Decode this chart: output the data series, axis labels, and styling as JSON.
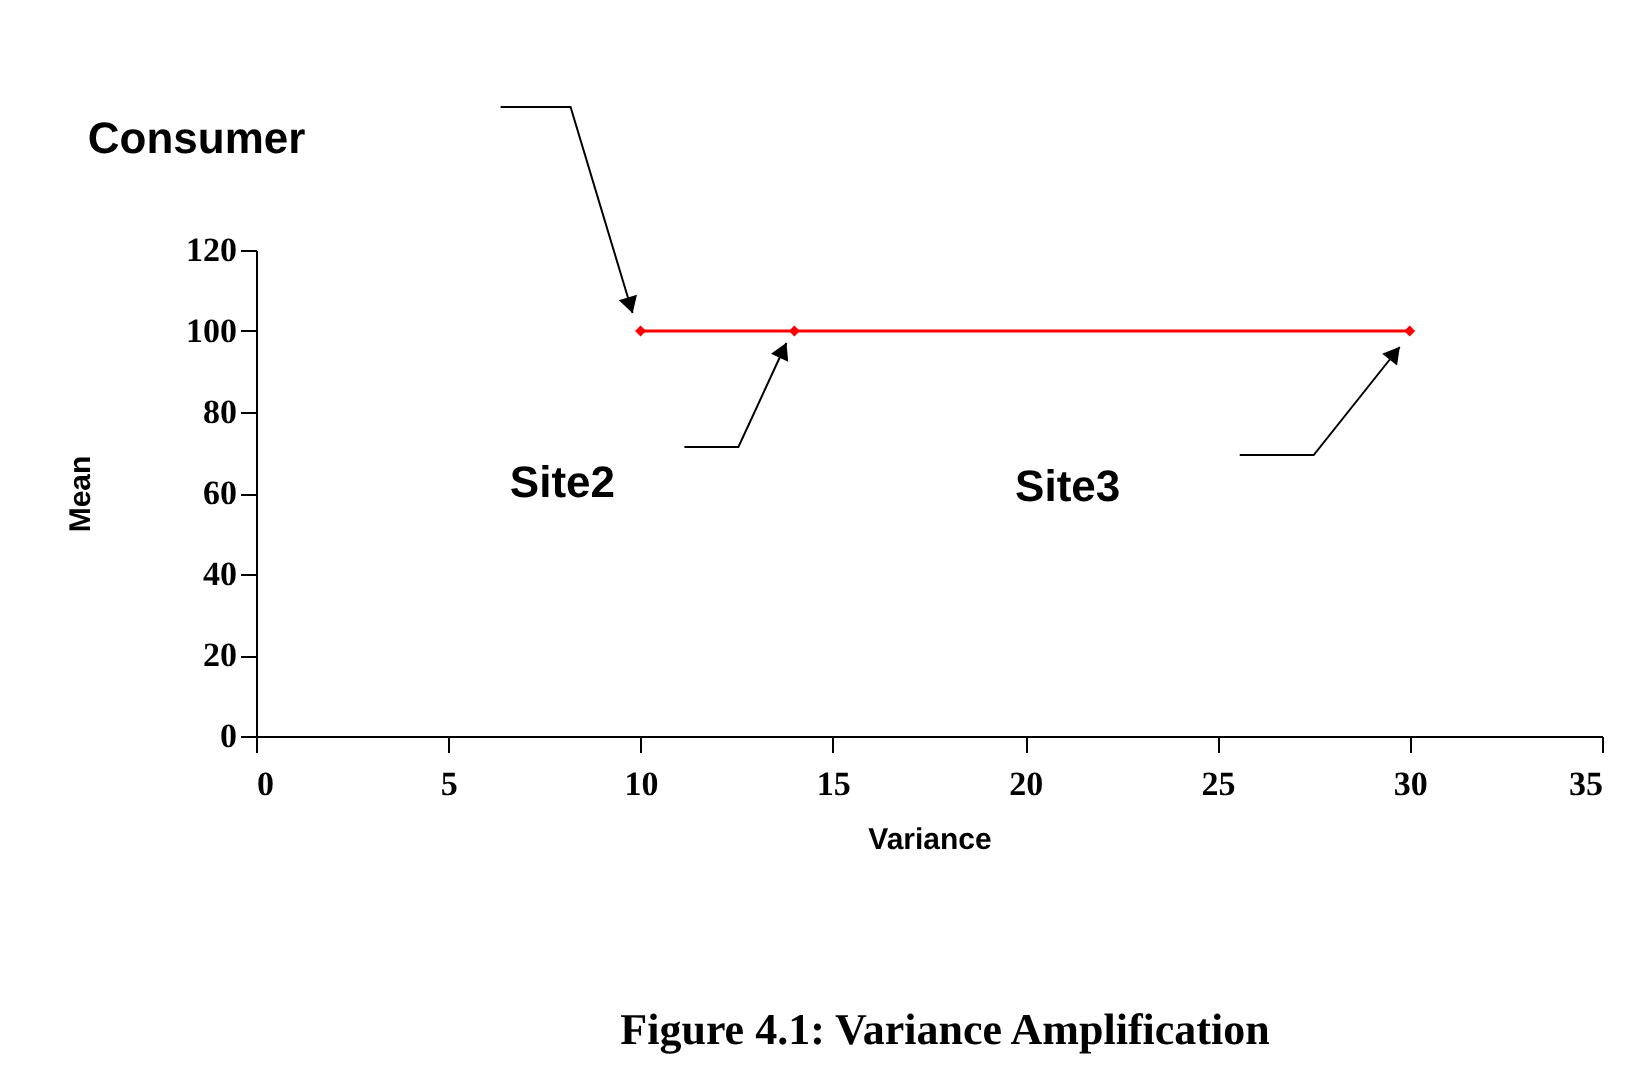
{
  "chart_data": {
    "type": "line",
    "x": [
      10,
      14,
      30
    ],
    "series": [
      {
        "color": "#ff0000",
        "values": [
          100,
          100,
          100
        ]
      }
    ],
    "xlabel": "Variance",
    "ylabel": "Mean",
    "xlim": [
      0,
      35
    ],
    "xticks": [
      0,
      5,
      10,
      15,
      20,
      25,
      30,
      35
    ],
    "ylim": [
      0,
      120
    ],
    "yticks": [
      0,
      20,
      40,
      60,
      80,
      100,
      120
    ],
    "grid": false,
    "marker": "diamond",
    "line_style": "solid",
    "annotations": [
      "Consumer",
      "Site2",
      "Site3",
      "Figure 4.1: Variance Amplification"
    ]
  }
}
